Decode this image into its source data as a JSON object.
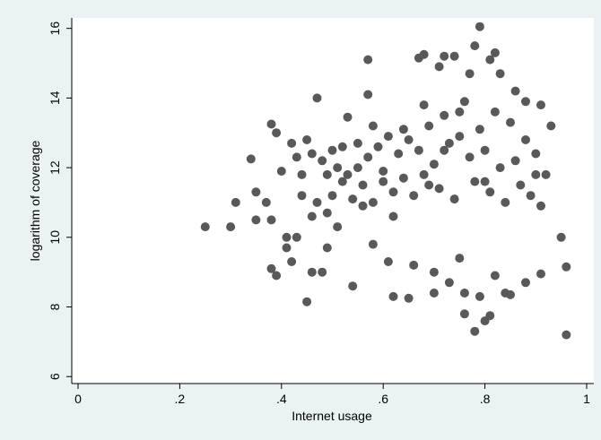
{
  "chart_data": {
    "type": "scatter",
    "title": "",
    "xlabel": "Internet usage",
    "ylabel": "logarithm of coverage",
    "xlim": [
      0,
      1
    ],
    "ylim": [
      5.8,
      16.3
    ],
    "x_ticks": [
      {
        "value": 0,
        "label": "0"
      },
      {
        "value": 0.2,
        "label": ".2"
      },
      {
        "value": 0.4,
        "label": ".4"
      },
      {
        "value": 0.6,
        "label": ".6"
      },
      {
        "value": 0.8,
        "label": ".8"
      },
      {
        "value": 1,
        "label": "1"
      }
    ],
    "y_ticks": [
      {
        "value": 6,
        "label": "6"
      },
      {
        "value": 8,
        "label": "8"
      },
      {
        "value": 10,
        "label": "10"
      },
      {
        "value": 12,
        "label": "12"
      },
      {
        "value": 14,
        "label": "14"
      },
      {
        "value": 16,
        "label": "16"
      }
    ],
    "grid": false,
    "legend": "none",
    "marker_color": "#595959",
    "background_color": "#eaf2f3",
    "plot_background_color": "#ffffff",
    "points": [
      [
        0.25,
        10.3
      ],
      [
        0.3,
        10.3
      ],
      [
        0.31,
        11.0
      ],
      [
        0.34,
        12.25
      ],
      [
        0.35,
        11.3
      ],
      [
        0.35,
        10.5
      ],
      [
        0.37,
        11.0
      ],
      [
        0.38,
        13.25
      ],
      [
        0.38,
        10.5
      ],
      [
        0.39,
        13.0
      ],
      [
        0.38,
        9.1
      ],
      [
        0.39,
        8.9
      ],
      [
        0.4,
        11.9
      ],
      [
        0.41,
        10.0
      ],
      [
        0.41,
        9.7
      ],
      [
        0.42,
        12.7
      ],
      [
        0.42,
        9.3
      ],
      [
        0.43,
        10.0
      ],
      [
        0.43,
        12.3
      ],
      [
        0.44,
        11.2
      ],
      [
        0.45,
        12.8
      ],
      [
        0.45,
        8.15
      ],
      [
        0.46,
        9.0
      ],
      [
        0.46,
        10.6
      ],
      [
        0.47,
        14.0
      ],
      [
        0.48,
        9.0
      ],
      [
        0.49,
        9.7
      ],
      [
        0.49,
        11.8
      ],
      [
        0.5,
        12.5
      ],
      [
        0.51,
        10.3
      ],
      [
        0.52,
        11.6
      ],
      [
        0.53,
        13.45
      ],
      [
        0.54,
        8.6
      ],
      [
        0.55,
        12.0
      ],
      [
        0.56,
        10.9
      ],
      [
        0.57,
        15.1
      ],
      [
        0.57,
        14.1
      ],
      [
        0.58,
        13.2
      ],
      [
        0.58,
        9.8
      ],
      [
        0.6,
        11.6
      ],
      [
        0.61,
        9.3
      ],
      [
        0.62,
        10.6
      ],
      [
        0.62,
        8.3
      ],
      [
        0.64,
        13.1
      ],
      [
        0.65,
        8.25
      ],
      [
        0.66,
        9.2
      ],
      [
        0.67,
        15.15
      ],
      [
        0.68,
        15.25
      ],
      [
        0.68,
        13.8
      ],
      [
        0.69,
        11.5
      ],
      [
        0.7,
        9.0
      ],
      [
        0.7,
        8.4
      ],
      [
        0.71,
        14.9
      ],
      [
        0.72,
        15.2
      ],
      [
        0.72,
        12.5
      ],
      [
        0.73,
        8.7
      ],
      [
        0.74,
        15.2
      ],
      [
        0.75,
        13.6
      ],
      [
        0.75,
        9.4
      ],
      [
        0.76,
        7.8
      ],
      [
        0.76,
        8.4
      ],
      [
        0.77,
        14.7
      ],
      [
        0.78,
        15.5
      ],
      [
        0.78,
        7.3
      ],
      [
        0.79,
        16.05
      ],
      [
        0.79,
        8.3
      ],
      [
        0.8,
        7.6
      ],
      [
        0.8,
        11.6
      ],
      [
        0.81,
        7.75
      ],
      [
        0.81,
        15.1
      ],
      [
        0.82,
        15.3
      ],
      [
        0.82,
        8.9
      ],
      [
        0.83,
        14.7
      ],
      [
        0.84,
        8.4
      ],
      [
        0.85,
        8.35
      ],
      [
        0.86,
        14.2
      ],
      [
        0.88,
        13.9
      ],
      [
        0.88,
        8.7
      ],
      [
        0.9,
        11.8
      ],
      [
        0.91,
        13.8
      ],
      [
        0.91,
        8.95
      ],
      [
        0.93,
        13.2
      ],
      [
        0.95,
        10.0
      ],
      [
        0.96,
        9.15
      ],
      [
        0.96,
        7.2
      ],
      [
        0.44,
        11.8
      ],
      [
        0.46,
        12.4
      ],
      [
        0.47,
        11.0
      ],
      [
        0.48,
        12.2
      ],
      [
        0.49,
        10.7
      ],
      [
        0.5,
        11.2
      ],
      [
        0.51,
        12.0
      ],
      [
        0.52,
        12.6
      ],
      [
        0.53,
        11.8
      ],
      [
        0.54,
        11.1
      ],
      [
        0.55,
        12.7
      ],
      [
        0.56,
        11.5
      ],
      [
        0.57,
        12.3
      ],
      [
        0.58,
        11.0
      ],
      [
        0.59,
        12.6
      ],
      [
        0.6,
        11.9
      ],
      [
        0.61,
        12.9
      ],
      [
        0.62,
        11.3
      ],
      [
        0.63,
        12.4
      ],
      [
        0.64,
        11.7
      ],
      [
        0.65,
        12.8
      ],
      [
        0.66,
        11.2
      ],
      [
        0.67,
        12.5
      ],
      [
        0.68,
        11.8
      ],
      [
        0.69,
        13.2
      ],
      [
        0.7,
        12.1
      ],
      [
        0.71,
        11.4
      ],
      [
        0.72,
        13.5
      ],
      [
        0.73,
        12.7
      ],
      [
        0.74,
        11.1
      ],
      [
        0.75,
        12.9
      ],
      [
        0.76,
        13.9
      ],
      [
        0.77,
        12.3
      ],
      [
        0.78,
        11.6
      ],
      [
        0.79,
        13.1
      ],
      [
        0.8,
        12.5
      ],
      [
        0.81,
        11.3
      ],
      [
        0.82,
        13.6
      ],
      [
        0.83,
        12.0
      ],
      [
        0.84,
        11.0
      ],
      [
        0.85,
        13.3
      ],
      [
        0.86,
        12.2
      ],
      [
        0.87,
        11.5
      ],
      [
        0.88,
        12.8
      ],
      [
        0.89,
        11.2
      ],
      [
        0.9,
        12.4
      ],
      [
        0.91,
        10.9
      ],
      [
        0.92,
        11.8
      ]
    ]
  }
}
